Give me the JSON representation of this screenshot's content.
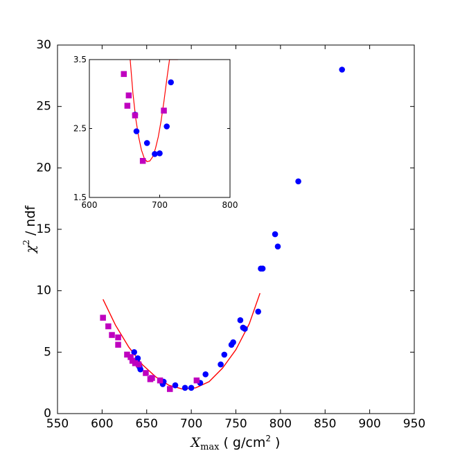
{
  "chart_data": [
    {
      "type": "scatter",
      "xlabel": "X_max ( g/cm² )",
      "xlabel_parts": {
        "var": "X",
        "sub": "max",
        "unit": "( g/cm",
        "sup": "2",
        "close": " )"
      },
      "ylabel": "χ² / ndf",
      "ylabel_parts": {
        "var": "χ",
        "sup": "2",
        "rest": " / ndf"
      },
      "xlim": [
        550,
        950
      ],
      "ylim": [
        0,
        30
      ],
      "xticks": [
        "550",
        "600",
        "650",
        "700",
        "750",
        "800",
        "850",
        "900",
        "950"
      ],
      "xtick_values": [
        550,
        600,
        650,
        700,
        750,
        800,
        850,
        900,
        950
      ],
      "yticks": [
        "0",
        "5",
        "10",
        "15",
        "20",
        "25",
        "30"
      ],
      "ytick_values": [
        0,
        5,
        10,
        15,
        20,
        25,
        30
      ],
      "grid": false,
      "series": [
        {
          "marker": "circle",
          "color": "#0000ff",
          "points": [
            [
              636,
              5.0
            ],
            [
              637,
              4.3
            ],
            [
              639,
              4.2
            ],
            [
              640,
              4.5
            ],
            [
              642,
              3.8
            ],
            [
              643,
              3.6
            ],
            [
              667,
              2.6
            ],
            [
              668,
              2.4
            ],
            [
              669,
              2.6
            ],
            [
              682,
              2.3
            ],
            [
              693,
              2.1
            ],
            [
              700,
              2.1
            ],
            [
              710,
              2.5
            ],
            [
              716,
              3.2
            ],
            [
              733,
              4.0
            ],
            [
              737,
              4.8
            ],
            [
              745,
              5.6
            ],
            [
              747,
              5.8
            ],
            [
              755,
              7.6
            ],
            [
              758,
              7.0
            ],
            [
              760,
              6.9
            ],
            [
              775,
              8.3
            ],
            [
              778,
              11.8
            ],
            [
              780,
              11.8
            ],
            [
              794,
              14.6
            ],
            [
              797,
              13.6
            ],
            [
              820,
              18.9
            ],
            [
              869,
              28.0
            ]
          ]
        },
        {
          "marker": "square",
          "color": "#bf00bf",
          "points": [
            [
              601,
              7.8
            ],
            [
              607,
              7.1
            ],
            [
              611,
              6.4
            ],
            [
              618,
              6.2
            ],
            [
              618,
              5.6
            ],
            [
              628,
              4.8
            ],
            [
              632,
              4.6
            ],
            [
              634,
              4.3
            ],
            [
              637,
              4.1
            ],
            [
              641,
              4.0
            ],
            [
              649,
              3.3
            ],
            [
              654,
              2.8
            ],
            [
              656,
              2.9
            ],
            [
              665,
              2.7
            ],
            [
              676,
              2.0
            ],
            [
              706,
              2.7
            ]
          ]
        }
      ],
      "fit_curve": {
        "color": "#ff0000",
        "x": [
          601,
          615,
          630,
          645,
          660,
          675,
          690,
          705,
          720,
          735,
          750,
          765,
          777
        ],
        "y": [
          9.3,
          7.2,
          5.4,
          4.0,
          3.0,
          2.3,
          2.0,
          2.1,
          2.6,
          3.7,
          5.2,
          7.3,
          9.8
        ]
      }
    },
    {
      "type": "scatter",
      "xlim": [
        600,
        800
      ],
      "ylim": [
        1.5,
        3.5
      ],
      "xticks": [
        "600",
        "700",
        "800"
      ],
      "xtick_values": [
        600,
        700,
        800
      ],
      "yticks": [
        "1.5",
        "2.5",
        "3.5"
      ],
      "ytick_values": [
        1.5,
        2.5,
        3.5
      ],
      "grid": false,
      "series": [
        {
          "marker": "circle",
          "color": "#0000ff",
          "points": [
            [
              665,
              2.7
            ],
            [
              667,
              2.46
            ],
            [
              682,
              2.29
            ],
            [
              693,
              2.13
            ],
            [
              700,
              2.14
            ],
            [
              710,
              2.53
            ],
            [
              716,
              3.17
            ]
          ]
        },
        {
          "marker": "square",
          "color": "#bf00bf",
          "points": [
            [
              649,
              3.29
            ],
            [
              654,
              2.83
            ],
            [
              656,
              2.98
            ],
            [
              665,
              2.69
            ],
            [
              676,
              2.03
            ],
            [
              706,
              2.76
            ]
          ]
        }
      ],
      "fit_curve": {
        "color": "#ff0000",
        "x": [
          658,
          662,
          666,
          670,
          674,
          678,
          682,
          686,
          690,
          694,
          698,
          702,
          706,
          710,
          714,
          718,
          722,
          726
        ],
        "y": [
          3.5,
          3.01,
          2.64,
          2.38,
          2.19,
          2.07,
          2.02,
          2.03,
          2.09,
          2.21,
          2.38,
          2.61,
          2.89,
          3.21,
          3.5,
          3.5,
          3.5,
          3.5
        ]
      }
    }
  ]
}
